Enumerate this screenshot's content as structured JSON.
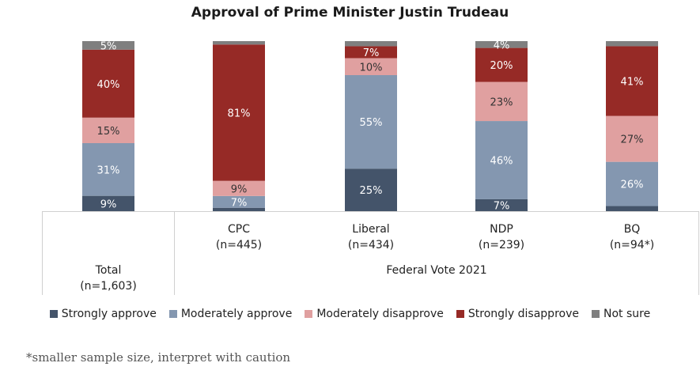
{
  "chart_data": {
    "type": "bar",
    "stacked": true,
    "title": "Approval of Prime Minister Justin Trudeau",
    "xlabel": "",
    "ylabel": "",
    "ylim": [
      0,
      100
    ],
    "categories": [
      {
        "name": "Total",
        "sample": "(n=1,603)"
      },
      {
        "name": "CPC",
        "sample": "(n=445)"
      },
      {
        "name": "Liberal",
        "sample": "(n=434)"
      },
      {
        "name": "NDP",
        "sample": "(n=239)"
      },
      {
        "name": "BQ",
        "sample": "(n=94*)"
      }
    ],
    "group_label": "Federal Vote 2021",
    "series": [
      {
        "name": "Strongly approve",
        "color": "#44546a",
        "values": [
          9,
          2,
          25,
          7,
          3
        ],
        "labels": [
          "9%",
          "",
          "25%",
          "7%",
          ""
        ]
      },
      {
        "name": "Moderately approve",
        "color": "#8497b0",
        "values": [
          31,
          7,
          55,
          46,
          26
        ],
        "labels": [
          "31%",
          "7%",
          "55%",
          "46%",
          "26%"
        ]
      },
      {
        "name": "Moderately disapprove",
        "color": "#e0a0a0",
        "values": [
          15,
          9,
          10,
          23,
          27
        ],
        "labels": [
          "15%",
          "9%",
          "10%",
          "23%",
          "27%"
        ]
      },
      {
        "name": "Strongly disapprove",
        "color": "#962a26",
        "values": [
          40,
          81,
          7,
          20,
          41
        ],
        "labels": [
          "40%",
          "81%",
          "7%",
          "20%",
          "41%"
        ]
      },
      {
        "name": "Not sure",
        "color": "#7f7f7f",
        "values": [
          5,
          2,
          3,
          4,
          3
        ],
        "labels": [
          "5%",
          "",
          "",
          "4%",
          ""
        ]
      }
    ],
    "label_color_dark": "#ffffff",
    "label_color_light": "#333333"
  },
  "footnote": "*smaller sample size, interpret with caution"
}
